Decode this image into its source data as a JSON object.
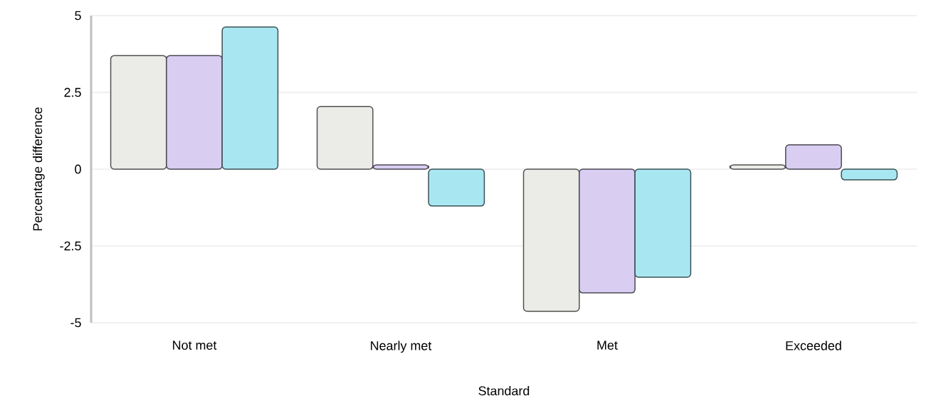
{
  "chart_data": {
    "type": "bar",
    "xlabel": "Standard",
    "ylabel": "Percentage difference",
    "categories": [
      "Not met",
      "Nearly met",
      "Met",
      "Exceeded"
    ],
    "series": [
      {
        "color": "#ebebe7",
        "values": [
          3.7,
          2.04,
          -4.63,
          0.14
        ]
      },
      {
        "color": "#d9cef2",
        "values": [
          3.7,
          0.14,
          -4.03,
          0.79
        ]
      },
      {
        "color": "#a8e7f2",
        "values": [
          4.63,
          -1.2,
          -3.52,
          -0.35
        ]
      }
    ],
    "ylim": [
      -5,
      5
    ],
    "yticks": [
      -5,
      -2.5,
      0,
      2.5,
      5
    ],
    "grid": "y"
  }
}
